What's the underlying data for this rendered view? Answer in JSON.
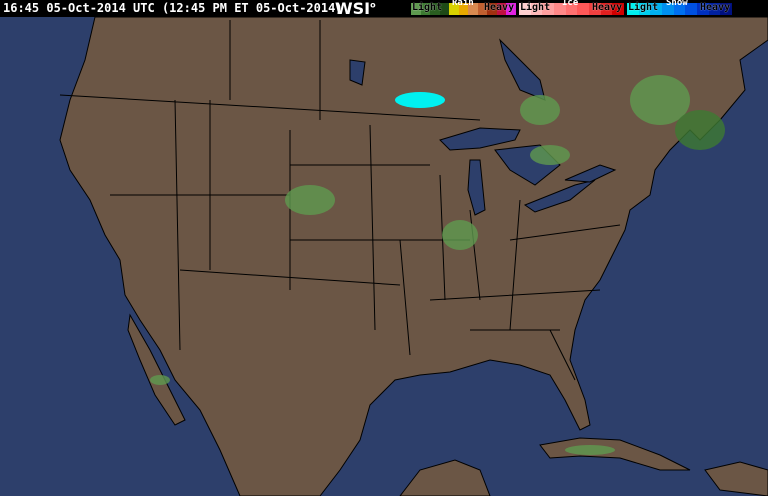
{
  "header": {
    "timestamp": "16:45 05-Oct-2014 UTC  (12:45 PM ET 05-Oct-2014)",
    "logo": "WSI"
  },
  "legend": [
    {
      "title": "Rain",
      "light": "Light",
      "heavy": "Heavy",
      "colors": [
        "#5f9a4f",
        "#3d7a32",
        "#2a5e20",
        "#1e4a16",
        "#d8d200",
        "#e8a800",
        "#d88a50",
        "#c06030",
        "#a03010",
        "#c01040",
        "#e020e0"
      ]
    },
    {
      "title": "Ice",
      "light": "Light",
      "heavy": "Heavy",
      "colors": [
        "#ffd0d0",
        "#ffb8b8",
        "#ffa0a0",
        "#ff8888",
        "#ff7070",
        "#ff5858",
        "#f04040",
        "#e02020",
        "#d00000"
      ]
    },
    {
      "title": "Snow",
      "light": "Light",
      "heavy": "Heavy",
      "colors": [
        "#00f0f0",
        "#00d0f0",
        "#00b0f0",
        "#0090f0",
        "#0070f0",
        "#0050e0",
        "#0030c0",
        "#0020a0",
        "#001080"
      ]
    }
  ],
  "colors": {
    "land": "#6b5645",
    "ocean": "#2d3f6b",
    "lakes": "#2d3f6b",
    "borders": "#000000"
  }
}
